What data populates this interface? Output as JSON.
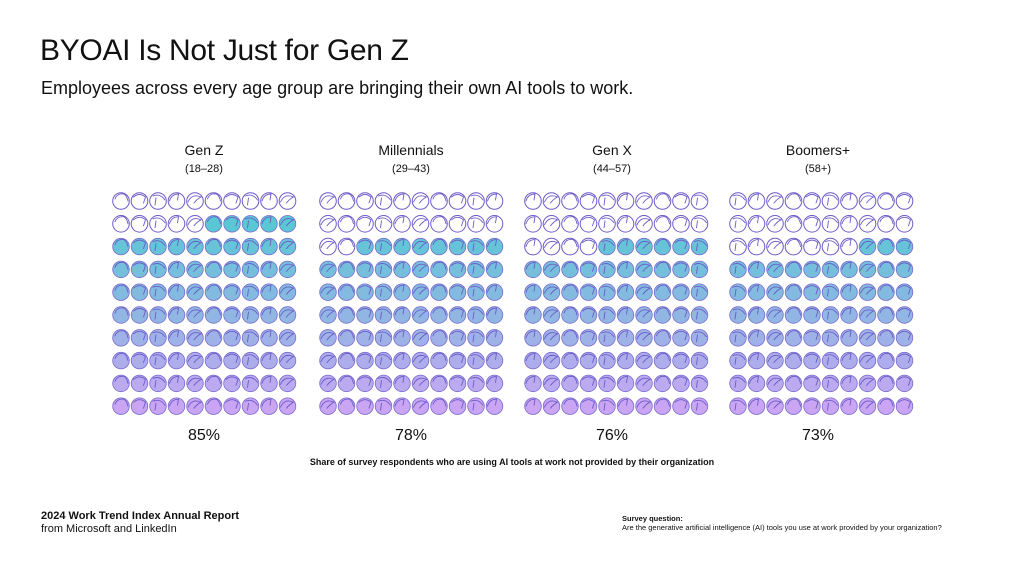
{
  "title": "BYOAI Is Not Just for Gen Z",
  "subtitle": "Employees across every age group are bringing their own AI tools to work.",
  "chart_data": {
    "type": "waffle",
    "grid": "10x10 icon grid per group, filled from bottom",
    "caption": "Share of survey respondents who are using AI tools at work not provided by their organization",
    "categories": [
      "Gen Z",
      "Millennials",
      "Gen X",
      "Boomers+"
    ],
    "ranges": [
      "(18–28)",
      "(29–43)",
      "(44–57)",
      "(58+)"
    ],
    "values": [
      85,
      78,
      76,
      73
    ],
    "labels": [
      "85%",
      "78%",
      "76%",
      "73%"
    ],
    "colors": {
      "fill_top": "#38c6cc",
      "fill_bottom": "#c49cf2",
      "outline": "#6b5cc8",
      "empty": "#ffffff"
    }
  },
  "footer": {
    "report": "2024 Work Trend Index Annual Report",
    "from": "from Microsoft and LinkedIn",
    "question_label": "Survey question:",
    "question": "Are the generative artificial intelligence (AI) tools you use at work provided by your organization?"
  }
}
